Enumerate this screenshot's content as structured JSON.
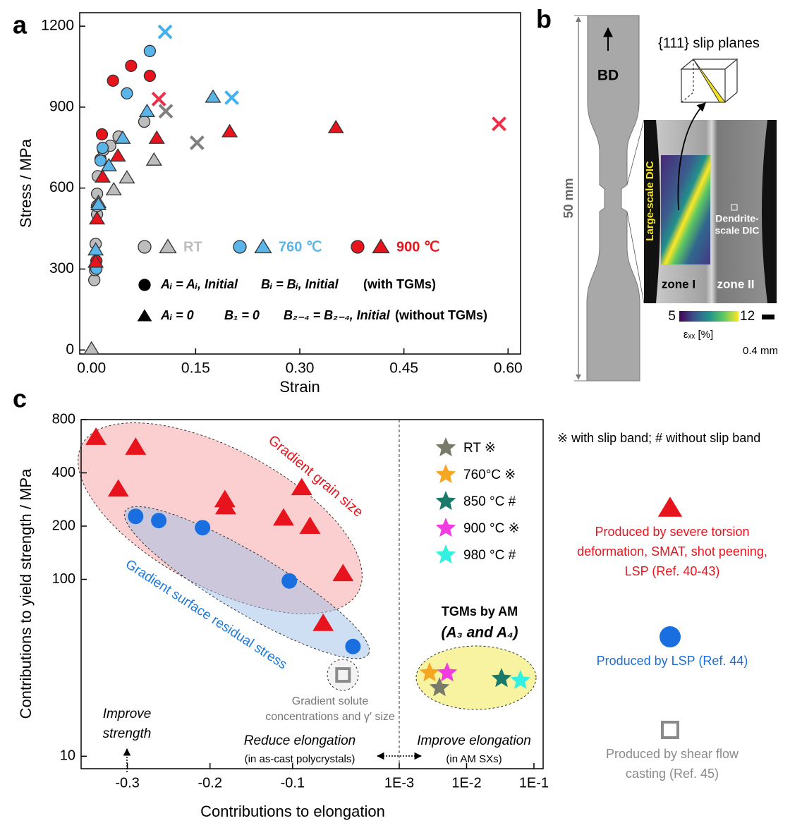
{
  "panel_labels": [
    "a",
    "b",
    "c"
  ],
  "chart_data": [
    {
      "type": "scatter",
      "xlabel": "Strain",
      "ylabel": "Stress / MPa",
      "xlim": [
        -0.017,
        0.618
      ],
      "ylim": [
        -15,
        1250
      ],
      "xticks": [
        {
          "value": 0,
          "label": "0.00"
        },
        0.15,
        {
          "value": 0.3,
          "label": "0.30"
        },
        0.45,
        {
          "value": 0.6,
          "label": "0.60"
        }
      ],
      "yticks": [
        0,
        300,
        600,
        900,
        1200
      ],
      "series": [
        {
          "name": "RT",
          "marker": "circle",
          "color": "#bdbdbd",
          "edgecolor": "#333333",
          "x": [
            0.004,
            0.005,
            0.006,
            0.008,
            0.008,
            0.008,
            0.009,
            0.013,
            0.017,
            0.027,
            0.039,
            0.076
          ],
          "values": [
            259,
            296,
            393,
            503,
            534,
            579,
            644,
            707,
            741,
            757,
            791,
            846
          ]
        },
        {
          "marker": "triangle",
          "color": "#bdbdbd",
          "edgecolor": "#333333",
          "x": [
            0,
            0.01,
            0.032,
            0.051,
            0.09
          ],
          "values": [
            5,
            548,
            595,
            639,
            705
          ]
        },
        {
          "marker": "x",
          "color": "#808080",
          "x": [
            0.107,
            0.152
          ],
          "values": [
            885,
            768
          ]
        },
        {
          "name": "760 ℃",
          "marker": "circle",
          "color": "#5ab4e8",
          "edgecolor": "#333333",
          "x": [
            0.007,
            0.013,
            0.016,
            0.051,
            0.084
          ],
          "values": [
            301,
            702,
            749,
            951,
            1108
          ]
        },
        {
          "marker": "triangle",
          "color": "#5ab4e8",
          "edgecolor": "#333333",
          "x": [
            0.006,
            0.01,
            0.025,
            0.045,
            0.08,
            0.175
          ],
          "values": [
            372,
            540,
            684,
            786,
            885,
            938
          ]
        },
        {
          "marker": "x",
          "color": "#45b0f0",
          "x": [
            0.106,
            0.202
          ],
          "values": [
            1179,
            935
          ]
        },
        {
          "name": "900 ℃",
          "marker": "circle",
          "color": "#e8141d",
          "edgecolor": "#333333",
          "x": [
            0.007,
            0.015,
            0.031,
            0.057,
            0.084
          ],
          "values": [
            330,
            799,
            998,
            1053,
            1016
          ]
        },
        {
          "marker": "triangle",
          "color": "#e8141d",
          "edgecolor": "#333333",
          "x": [
            0.006,
            0.008,
            0.016,
            0.038,
            0.094,
            0.199,
            0.352
          ],
          "values": [
            327,
            487,
            642,
            720,
            786,
            810,
            825
          ]
        },
        {
          "marker": "x",
          "color": "#ee2f4a",
          "x": [
            0.097,
            0.587
          ],
          "values": [
            930,
            838
          ]
        }
      ],
      "formula_rows": [
        {
          "marker": "circle",
          "formula": [
            "Aᵢ = Aᵢ, Initial",
            "Bᵢ = Bᵢ, Initial"
          ],
          "note": "(with TGMs)"
        },
        {
          "marker": "triangle",
          "formula": [
            "Aᵢ = 0",
            "B₁ = 0",
            "B₂₋₄ = B₂₋₄, Initial"
          ],
          "note": "(without TGMs)"
        }
      ]
    },
    {
      "type": "scatter",
      "xlabel": "Contributions to elongation",
      "ylabel": "Contributions to yield strength / MPa",
      "xscale": "linear-log",
      "yscale": "log",
      "xlim": [
        -0.356,
        0.137
      ],
      "ylim": [
        8.5,
        800
      ],
      "xticks": [
        -0.3,
        -0.2,
        -0.1,
        {
          "value": 0.001,
          "label": "1E-3"
        },
        {
          "value": 0.01,
          "label": "1E-2"
        },
        {
          "value": 0.1,
          "label": "1E-1"
        }
      ],
      "yticks": [
        10,
        100,
        200,
        400,
        800
      ],
      "series": [
        {
          "marker": "triangle",
          "color": "#e8141d",
          "x": [
            -0.338,
            -0.29,
            -0.311,
            -0.182,
            -0.181,
            -0.111,
            -0.089,
            -0.079,
            -0.039,
            -0.063
          ],
          "values": [
            637,
            560,
            325,
            283,
            258,
            223,
            331,
            200,
            108,
            56.5
          ],
          "description": [
            "Produced by severe torsion",
            "deformation, SMAT, shot peening,",
            "LSP (Ref. 40-43)"
          ]
        },
        {
          "marker": "circle",
          "color": "#1a6fe0",
          "x": [
            -0.29,
            -0.262,
            -0.209,
            -0.104,
            -0.027
          ],
          "values": [
            227,
            215,
            196,
            98,
            41.7
          ],
          "description": [
            "Produced by LSP (Ref. 44)"
          ]
        },
        {
          "marker": "square",
          "color": "#8a8a8a",
          "x": [
            -0.039
          ],
          "values": [
            28.8
          ],
          "description": [
            "Produced by shear flow",
            "casting (Ref. 45)"
          ]
        },
        {
          "name": "RT ※",
          "marker": "star",
          "color": "#7a7a6a",
          "x": [
            0.00396
          ],
          "values": [
            24.4
          ]
        },
        {
          "name": "760°C ※",
          "marker": "star",
          "color": "#f5a623",
          "x": [
            0.00282
          ],
          "values": [
            29.6
          ]
        },
        {
          "name": "850 °C #",
          "marker": "star",
          "color": "#1a7a6a",
          "x": [
            0.033
          ],
          "values": [
            27.5
          ]
        },
        {
          "name": "900 °C ※",
          "marker": "star",
          "color": "#f03ce0",
          "x": [
            0.00515
          ],
          "values": [
            29.6
          ]
        },
        {
          "name": "980 °C #",
          "marker": "star",
          "color": "#33f0e0",
          "x": [
            0.063
          ],
          "values": [
            26.8
          ]
        }
      ],
      "annotations": [
        "Gradient grain size",
        "Gradient surface residual stress",
        "Gradient solute",
        "concentrations and γ′ size",
        "Improve",
        "strength",
        "Reduce elongation",
        "(in as-cast polycrystals)",
        "Improve elongation",
        "(in AM SXs)",
        "TGMs by AM",
        "(A₃ and A₄)",
        "※ with slip band;  # without slip band"
      ]
    }
  ],
  "panel_b": {
    "bd": "BD",
    "slip_planes": "{111} slip planes",
    "length": "50 mm",
    "large_dic": "Large-scale DIC",
    "dendrite_dic": [
      "Dendrite-",
      "scale DIC"
    ],
    "zone1": "zone I",
    "zone2": "zone II",
    "colorbar_min": 5,
    "colorbar_max": 12,
    "colorbar_label": "εₓₓ [%]",
    "scale_bar": "0.4 mm"
  }
}
